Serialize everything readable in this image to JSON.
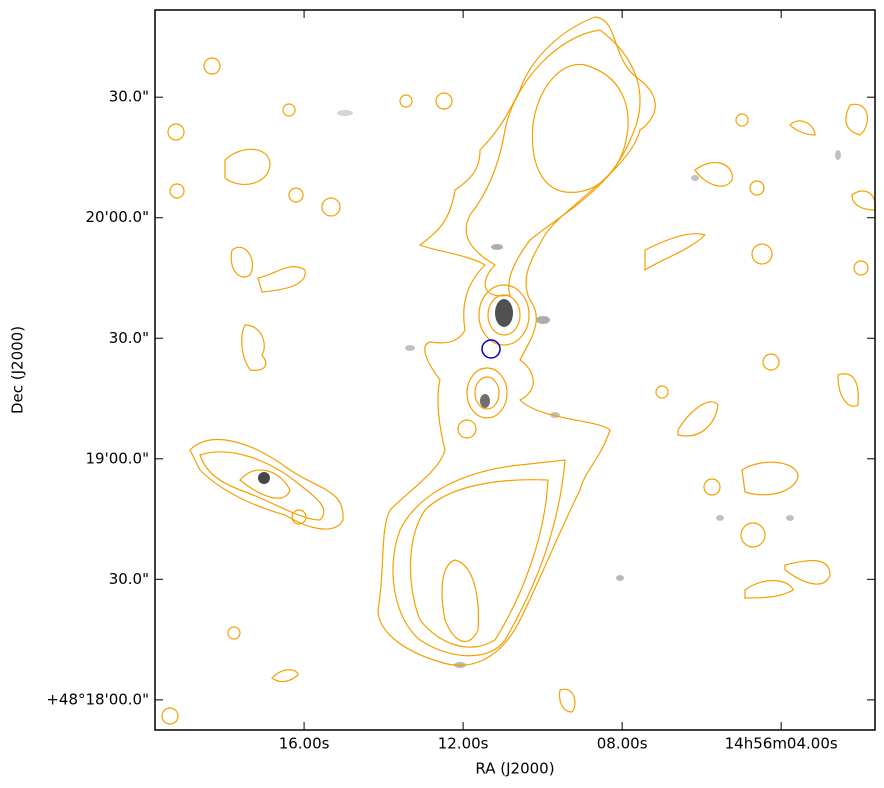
{
  "chart_data": {
    "type": "image",
    "xlabel": "RA (J2000)",
    "ylabel": "Dec (J2000)",
    "xlim": [
      19.75,
      1.64
    ],
    "ylim": [
      1072.5,
      1251.7
    ],
    "xticks": [
      {
        "value": 16,
        "label": "16.00s"
      },
      {
        "value": 12,
        "label": "12.00s"
      },
      {
        "value": 8,
        "label": "08.00s"
      },
      {
        "value": 4,
        "label": "14h56m04.00s"
      }
    ],
    "yticks": [
      {
        "value": 1080,
        "label": "+48°18'00.0\""
      },
      {
        "value": 1110,
        "label": "30.0\""
      },
      {
        "value": 1140,
        "label": "19'00.0\""
      },
      {
        "value": 1170,
        "label": "30.0\""
      },
      {
        "value": 1200,
        "label": "20'00.0\""
      },
      {
        "value": 1230,
        "label": "30.0\""
      }
    ]
  }
}
